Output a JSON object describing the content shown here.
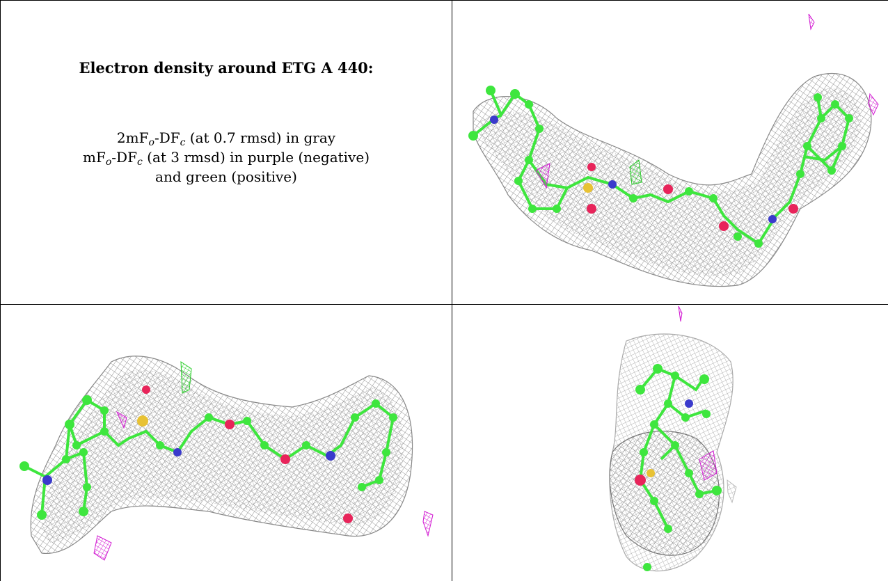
{
  "caption": {
    "title": "Electron density around ETG A 440:",
    "line1_pre": "2mF",
    "line1_sub1": "o",
    "line1_mid": "-DF",
    "line1_sub2": "c",
    "line1_post": " (at 0.7 rmsd) in gray",
    "line2_pre": "mF",
    "line2_sub1": "o",
    "line2_mid": "-DF",
    "line2_sub2": "c",
    "line2_post": " (at 3 rmsd) in purple (negative)",
    "line3": "and green (positive)"
  },
  "colors": {
    "mesh_gray": "#8a8a8a",
    "carbon_green": "#3ee63e",
    "nitrogen_blue": "#3a3acc",
    "oxygen_red": "#e8245a",
    "sulfur_yellow": "#e8c234",
    "neg_density_purple": "#d21ad2",
    "pos_density_green": "#22cc22"
  },
  "panels": [
    "view-top-right",
    "view-bottom-left",
    "view-bottom-right"
  ]
}
